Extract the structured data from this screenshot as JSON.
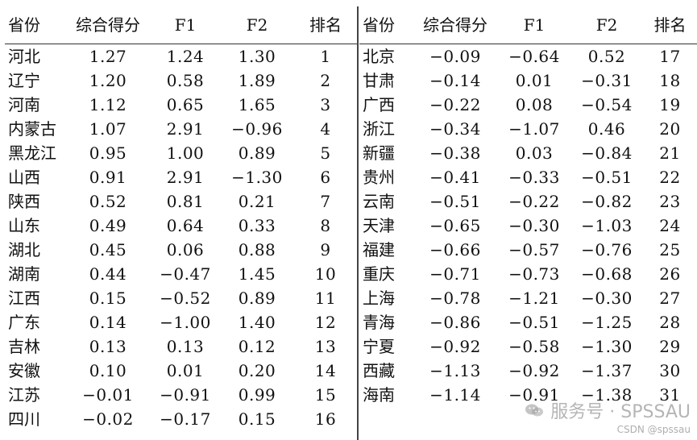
{
  "headers": {
    "province": "省份",
    "score": "综合得分",
    "f1": "F1",
    "f2": "F2",
    "rank": "排名"
  },
  "left_rows": [
    {
      "province": "河北",
      "score": "1.27",
      "f1": "1.24",
      "f2": "1.30",
      "rank": "1"
    },
    {
      "province": "辽宁",
      "score": "1.20",
      "f1": "0.58",
      "f2": "1.89",
      "rank": "2"
    },
    {
      "province": "河南",
      "score": "1.12",
      "f1": "0.65",
      "f2": "1.65",
      "rank": "3"
    },
    {
      "province": "内蒙古",
      "score": "1.07",
      "f1": "2.91",
      "f2": "-0.96",
      "rank": "4"
    },
    {
      "province": "黑龙江",
      "score": "0.95",
      "f1": "1.00",
      "f2": "0.89",
      "rank": "5"
    },
    {
      "province": "山西",
      "score": "0.91",
      "f1": "2.91",
      "f2": "-1.30",
      "rank": "6"
    },
    {
      "province": "陕西",
      "score": "0.52",
      "f1": "0.81",
      "f2": "0.21",
      "rank": "7"
    },
    {
      "province": "山东",
      "score": "0.49",
      "f1": "0.64",
      "f2": "0.33",
      "rank": "8"
    },
    {
      "province": "湖北",
      "score": "0.45",
      "f1": "0.06",
      "f2": "0.88",
      "rank": "9"
    },
    {
      "province": "湖南",
      "score": "0.44",
      "f1": "-0.47",
      "f2": "1.45",
      "rank": "10"
    },
    {
      "province": "江西",
      "score": "0.15",
      "f1": "-0.52",
      "f2": "0.89",
      "rank": "11"
    },
    {
      "province": "广东",
      "score": "0.14",
      "f1": "-1.00",
      "f2": "1.40",
      "rank": "12"
    },
    {
      "province": "吉林",
      "score": "0.13",
      "f1": "0.13",
      "f2": "0.12",
      "rank": "13"
    },
    {
      "province": "安徽",
      "score": "0.10",
      "f1": "0.01",
      "f2": "0.20",
      "rank": "14"
    },
    {
      "province": "江苏",
      "score": "-0.01",
      "f1": "-0.91",
      "f2": "0.99",
      "rank": "15"
    },
    {
      "province": "四川",
      "score": "-0.02",
      "f1": "-0.17",
      "f2": "0.15",
      "rank": "16"
    }
  ],
  "right_rows": [
    {
      "province": "北京",
      "score": "-0.09",
      "f1": "-0.64",
      "f2": "0.52",
      "rank": "17"
    },
    {
      "province": "甘肃",
      "score": "-0.14",
      "f1": "0.01",
      "f2": "-0.31",
      "rank": "18"
    },
    {
      "province": "广西",
      "score": "-0.22",
      "f1": "0.08",
      "f2": "-0.54",
      "rank": "19"
    },
    {
      "province": "浙江",
      "score": "-0.34",
      "f1": "-1.07",
      "f2": "0.46",
      "rank": "20"
    },
    {
      "province": "新疆",
      "score": "-0.38",
      "f1": "0.03",
      "f2": "-0.84",
      "rank": "21"
    },
    {
      "province": "贵州",
      "score": "-0.41",
      "f1": "-0.33",
      "f2": "-0.51",
      "rank": "22"
    },
    {
      "province": "云南",
      "score": "-0.51",
      "f1": "-0.22",
      "f2": "-0.82",
      "rank": "23"
    },
    {
      "province": "天津",
      "score": "-0.65",
      "f1": "-0.30",
      "f2": "-1.03",
      "rank": "24"
    },
    {
      "province": "福建",
      "score": "-0.66",
      "f1": "-0.57",
      "f2": "-0.76",
      "rank": "25"
    },
    {
      "province": "重庆",
      "score": "-0.71",
      "f1": "-0.73",
      "f2": "-0.68",
      "rank": "26"
    },
    {
      "province": "上海",
      "score": "-0.78",
      "f1": "-1.21",
      "f2": "-0.30",
      "rank": "27"
    },
    {
      "province": "青海",
      "score": "-0.86",
      "f1": "-0.51",
      "f2": "-1.25",
      "rank": "28"
    },
    {
      "province": "宁夏",
      "score": "-0.92",
      "f1": "-0.58",
      "f2": "-1.30",
      "rank": "29"
    },
    {
      "province": "西藏",
      "score": "-1.13",
      "f1": "-0.92",
      "f2": "-1.37",
      "rank": "30"
    },
    {
      "province": "海南",
      "score": "-1.14",
      "f1": "-0.91",
      "f2": "-1.38",
      "rank": "31"
    }
  ],
  "watermark": {
    "main": "服务号 · SPSSAU",
    "sub": "CSDN @spssau",
    "icon": "wechat-icon"
  }
}
